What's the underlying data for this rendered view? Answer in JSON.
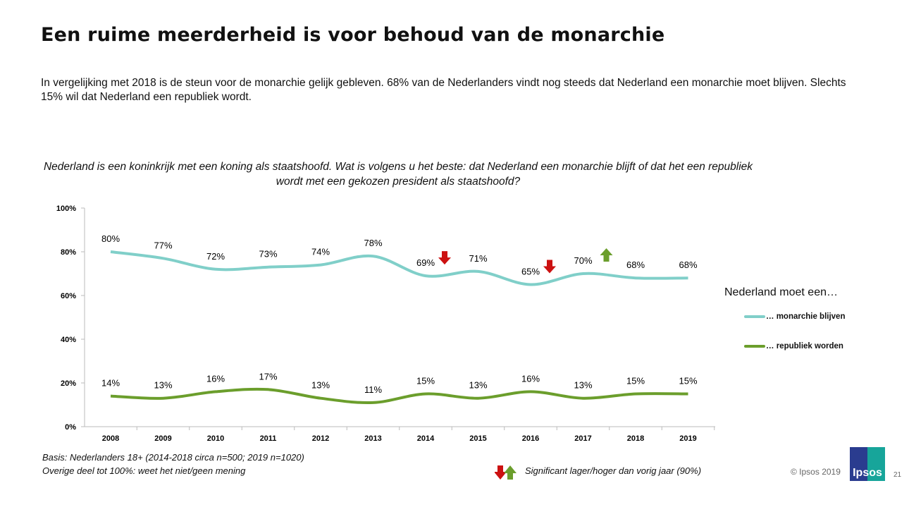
{
  "title": "Een ruime meerderheid is voor behoud van de monarchie",
  "subtitle": "In vergelijking met 2018 is de steun voor de monarchie gelijk gebleven. 68% van de Nederlanders vindt nog steeds dat Nederland een monarchie moet blijven. Slechts 15% wil dat Nederland een republiek wordt.",
  "question": "Nederland is een koninkrijk met een koning als staatshoofd. Wat is volgens u het beste: dat Nederland een monarchie blijft of dat het een republiek wordt met een gekozen president als staatshoofd?",
  "chart_data": {
    "type": "line",
    "categories": [
      "2008",
      "2009",
      "2010",
      "2011",
      "2012",
      "2013",
      "2014",
      "2015",
      "2016",
      "2017",
      "2018",
      "2019"
    ],
    "ylim": [
      0,
      100
    ],
    "yticks": [
      "0%",
      "20%",
      "40%",
      "60%",
      "80%",
      "100%"
    ],
    "legend_title": "Nederland moet een…",
    "legend_placement": "right",
    "series": [
      {
        "name": "… monarchie blijven",
        "color": "#80cfc9",
        "values": [
          80,
          77,
          72,
          73,
          74,
          78,
          69,
          71,
          65,
          70,
          68,
          68
        ]
      },
      {
        "name": "… republiek worden",
        "color": "#6b9e2c",
        "values": [
          14,
          13,
          16,
          17,
          13,
          11,
          15,
          13,
          16,
          13,
          15,
          15
        ]
      }
    ],
    "significance": [
      {
        "year": "2014",
        "direction": "down",
        "color": "#cc1111"
      },
      {
        "year": "2016",
        "direction": "down",
        "color": "#cc1111"
      },
      {
        "year": "2017",
        "direction": "up",
        "color": "#6b9e2c"
      }
    ]
  },
  "footer": {
    "basis": "Basis: Nederlanders 18+ (2014-2018 circa n=500; 2019 n=1020)",
    "rest": "Overige deel tot 100%: weet het niet/geen mening",
    "significance": "Significant lager/hoger dan vorig jaar (90%)",
    "copyright": "© Ipsos 2019",
    "logo": "Ipsos",
    "page": "21"
  }
}
